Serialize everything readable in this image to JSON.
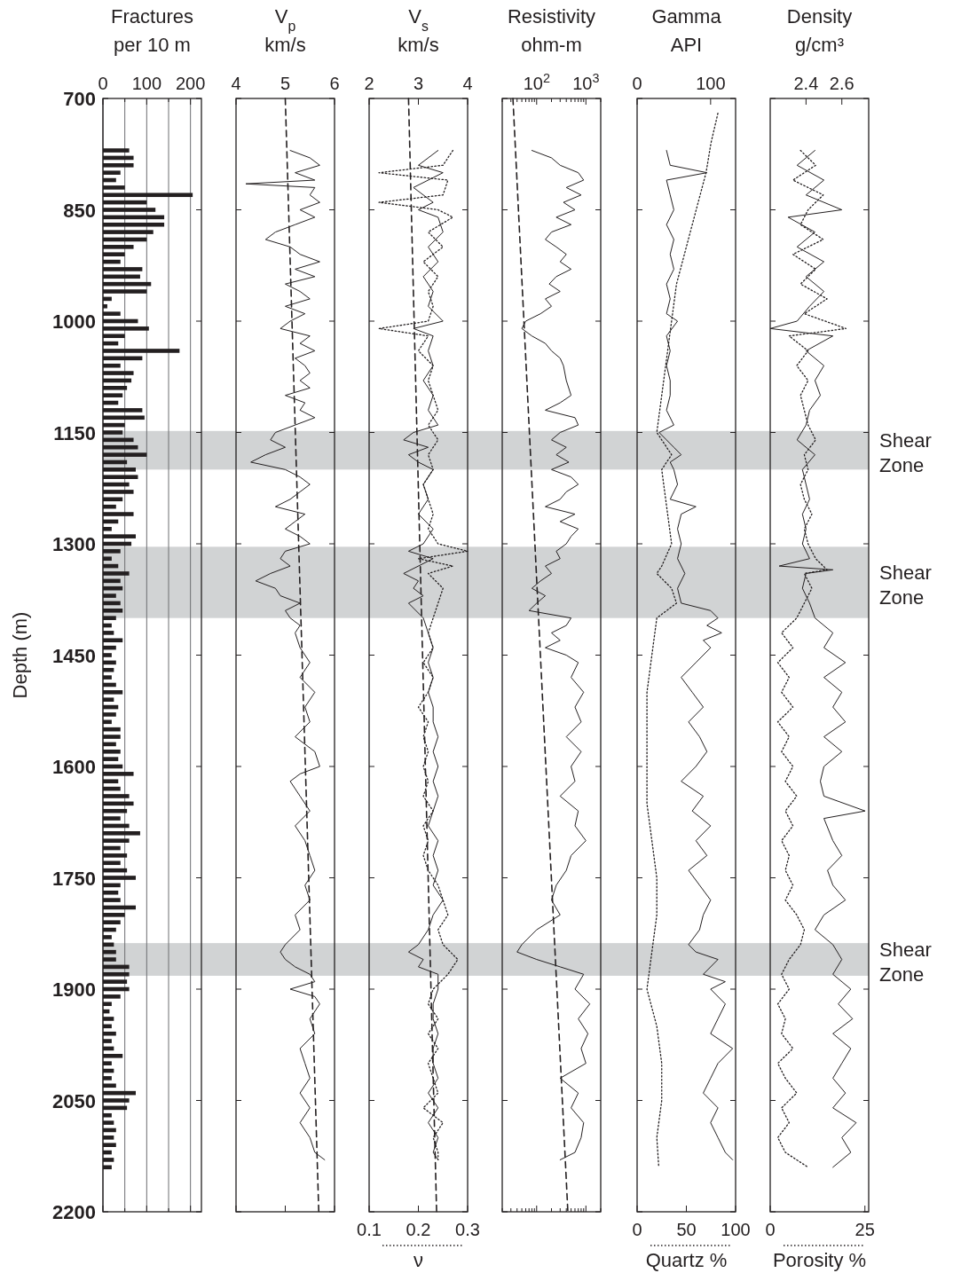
{
  "chart_data": [
    {
      "type": "bar",
      "orientation": "horizontal",
      "xlabel": "Fractures\nper 10 m",
      "ylabel": "Depth (m)",
      "xlim": [
        0,
        225
      ],
      "xticks": [
        0,
        {
          "value": 50,
          "label": null
        },
        100,
        {
          "value": 150,
          "label": null
        },
        200
      ],
      "ylim": [
        2200,
        700
      ],
      "yticks": [
        700,
        850,
        1000,
        1150,
        1300,
        1450,
        1600,
        1750,
        1900,
        2050,
        2200
      ],
      "grid": "x",
      "color": "#231f20",
      "x": [
        770,
        780,
        790,
        800,
        810,
        820,
        830,
        840,
        850,
        860,
        870,
        880,
        890,
        900,
        910,
        920,
        930,
        940,
        950,
        960,
        970,
        980,
        990,
        1000,
        1010,
        1020,
        1030,
        1040,
        1050,
        1060,
        1070,
        1080,
        1090,
        1100,
        1110,
        1120,
        1130,
        1140,
        1150,
        1160,
        1170,
        1180,
        1190,
        1200,
        1210,
        1220,
        1230,
        1240,
        1250,
        1260,
        1270,
        1280,
        1290,
        1300,
        1310,
        1320,
        1330,
        1340,
        1350,
        1360,
        1370,
        1380,
        1390,
        1400,
        1410,
        1420,
        1430,
        1440,
        1450,
        1460,
        1470,
        1480,
        1490,
        1500,
        1510,
        1520,
        1530,
        1540,
        1550,
        1560,
        1570,
        1580,
        1590,
        1600,
        1610,
        1620,
        1630,
        1640,
        1650,
        1660,
        1670,
        1680,
        1690,
        1700,
        1710,
        1720,
        1730,
        1740,
        1750,
        1760,
        1770,
        1780,
        1790,
        1800,
        1810,
        1820,
        1830,
        1840,
        1850,
        1860,
        1870,
        1880,
        1890,
        1900,
        1910,
        1920,
        1930,
        1940,
        1950,
        1960,
        1970,
        1980,
        1990,
        2000,
        2010,
        2020,
        2030,
        2040,
        2050,
        2060,
        2070,
        2080,
        2090,
        2100,
        2110,
        2120,
        2130,
        2140
      ],
      "values": [
        60,
        70,
        70,
        40,
        30,
        50,
        205,
        100,
        120,
        140,
        140,
        115,
        100,
        70,
        50,
        40,
        90,
        85,
        110,
        100,
        20,
        10,
        40,
        80,
        105,
        50,
        35,
        175,
        90,
        40,
        70,
        65,
        55,
        45,
        35,
        90,
        95,
        50,
        45,
        70,
        80,
        100,
        55,
        75,
        80,
        60,
        70,
        45,
        30,
        70,
        35,
        20,
        75,
        65,
        40,
        20,
        35,
        60,
        40,
        45,
        30,
        40,
        45,
        30,
        20,
        25,
        45,
        30,
        20,
        30,
        25,
        20,
        30,
        45,
        25,
        35,
        30,
        20,
        40,
        40,
        30,
        40,
        35,
        45,
        70,
        35,
        40,
        60,
        70,
        55,
        40,
        60,
        85,
        60,
        40,
        55,
        40,
        55,
        75,
        40,
        35,
        40,
        75,
        50,
        40,
        30,
        20,
        25,
        30,
        30,
        60,
        60,
        55,
        60,
        40,
        20,
        15,
        25,
        20,
        30,
        20,
        25,
        45,
        20,
        25,
        20,
        30,
        75,
        60,
        55,
        20,
        25,
        30,
        25,
        30,
        20,
        25,
        20
      ],
      "bands": [
        {
          "axis": "y",
          "from": 1148,
          "to": 1200,
          "color": "#d1d3d4"
        },
        {
          "axis": "y",
          "from": 1304,
          "to": 1400,
          "color": "#d1d3d4"
        },
        {
          "axis": "y",
          "from": 1838,
          "to": 1882,
          "color": "#d1d3d4"
        }
      ]
    },
    {
      "type": "line",
      "orientation": "horizontal",
      "xlabel": "V$_{p}$\nkm/s",
      "xlim": [
        4,
        6
      ],
      "xticks": [
        4,
        5,
        6
      ],
      "ylim": [
        2200,
        700
      ],
      "yticks": [
        700,
        850,
        1000,
        1150,
        1300,
        1450,
        1600,
        1750,
        1900,
        2050,
        2200
      ],
      "tick_labels": "x",
      "series": [
        {
          "color": "#231f20",
          "line_style": "solid",
          "x": [
            770,
            780,
            790,
            800,
            810,
            815,
            820,
            830,
            840,
            850,
            860,
            870,
            880,
            890,
            900,
            910,
            920,
            930,
            940,
            950,
            960,
            970,
            980,
            990,
            1000,
            1010,
            1020,
            1030,
            1040,
            1050,
            1060,
            1070,
            1080,
            1090,
            1100,
            1110,
            1120,
            1130,
            1140,
            1150,
            1160,
            1170,
            1180,
            1190,
            1200,
            1210,
            1220,
            1230,
            1240,
            1250,
            1260,
            1270,
            1280,
            1290,
            1300,
            1310,
            1320,
            1330,
            1340,
            1350,
            1360,
            1370,
            1380,
            1390,
            1400,
            1410,
            1420,
            1440,
            1460,
            1480,
            1500,
            1520,
            1540,
            1560,
            1580,
            1600,
            1610,
            1620,
            1640,
            1660,
            1680,
            1700,
            1720,
            1740,
            1760,
            1780,
            1800,
            1820,
            1840,
            1850,
            1860,
            1870,
            1880,
            1890,
            1900,
            1910,
            1920,
            1940,
            1960,
            1980,
            2000,
            2020,
            2040,
            2060,
            2080,
            2100,
            2120,
            2130
          ],
          "values": [
            5.1,
            5.5,
            5.7,
            5.2,
            5.6,
            4.2,
            5.6,
            5.5,
            5.7,
            5.3,
            5.6,
            5.2,
            4.8,
            4.6,
            5.1,
            5.3,
            5.7,
            5.2,
            5.6,
            5.0,
            5.3,
            5.5,
            5.0,
            5.4,
            5.1,
            4.9,
            5.5,
            5.3,
            5.6,
            5.2,
            5.4,
            5.5,
            5.3,
            5.5,
            5.0,
            5.4,
            5.3,
            5.6,
            5.2,
            4.8,
            4.7,
            5.0,
            4.6,
            4.3,
            5.0,
            5.3,
            5.5,
            5.3,
            5.1,
            4.8,
            5.4,
            5.2,
            5.0,
            5.3,
            5.5,
            5.0,
            4.9,
            5.1,
            4.7,
            4.4,
            4.8,
            4.9,
            5.3,
            5.0,
            5.1,
            5.3,
            5.2,
            5.3,
            5.5,
            5.3,
            5.6,
            5.4,
            5.5,
            5.2,
            5.6,
            5.7,
            5.3,
            5.1,
            5.3,
            5.5,
            5.2,
            5.4,
            5.5,
            5.6,
            5.4,
            5.5,
            5.2,
            5.3,
            5.0,
            4.9,
            5.0,
            5.2,
            5.5,
            5.6,
            5.1,
            5.6,
            5.7,
            5.5,
            5.6,
            5.3,
            5.4,
            5.5,
            5.3,
            5.5,
            5.3,
            5.5,
            5.6,
            5.8
          ]
        },
        {
          "color": "#231f20",
          "line_style": "dashed",
          "x": [
            700,
            2200
          ],
          "values": [
            5.0,
            5.68
          ]
        }
      ],
      "bands": [
        {
          "axis": "y",
          "from": 1148,
          "to": 1200,
          "color": "#d1d3d4"
        },
        {
          "axis": "y",
          "from": 1304,
          "to": 1400,
          "color": "#d1d3d4"
        },
        {
          "axis": "y",
          "from": 1838,
          "to": 1882,
          "color": "#d1d3d4"
        }
      ]
    },
    {
      "type": "line",
      "orientation": "horizontal",
      "x2label": "V$_{s}$\nkm/s",
      "xlabel": "ν",
      "x2lim": [
        2,
        4
      ],
      "x2ticks": [
        2,
        3,
        4
      ],
      "xlim": [
        0.1,
        0.3
      ],
      "xticks": [
        0.1,
        0.2,
        0.3
      ],
      "ylim": [
        2200,
        700
      ],
      "yticks": [
        700,
        850,
        1000,
        1150,
        1300,
        1450,
        1600,
        1750,
        1900,
        2050,
        2200
      ],
      "tick_labels": "x",
      "series": [
        {
          "color": "#231f20",
          "line_style": "solid",
          "axis": "x2",
          "x": [
            770,
            790,
            800,
            820,
            840,
            850,
            860,
            880,
            900,
            920,
            940,
            960,
            980,
            1000,
            1010,
            1020,
            1040,
            1060,
            1080,
            1100,
            1120,
            1140,
            1150,
            1160,
            1170,
            1180,
            1190,
            1200,
            1220,
            1240,
            1260,
            1280,
            1300,
            1310,
            1320,
            1340,
            1350,
            1360,
            1370,
            1380,
            1400,
            1420,
            1440,
            1460,
            1480,
            1500,
            1520,
            1540,
            1560,
            1580,
            1600,
            1620,
            1640,
            1660,
            1680,
            1700,
            1720,
            1740,
            1760,
            1780,
            1800,
            1820,
            1840,
            1850,
            1860,
            1870,
            1880,
            1900,
            1920,
            1940,
            1960,
            1980,
            2000,
            2020,
            2040,
            2060,
            2080,
            2100,
            2120,
            2130
          ],
          "values": [
            3.4,
            3.0,
            3.5,
            2.9,
            3.3,
            3.0,
            3.4,
            3.5,
            3.2,
            3.4,
            3.1,
            3.3,
            3.2,
            3.5,
            2.9,
            3.3,
            3.2,
            3.3,
            3.1,
            3.3,
            3.2,
            3.4,
            2.9,
            2.7,
            3.2,
            2.8,
            3.0,
            3.3,
            3.1,
            3.2,
            3.0,
            3.3,
            3.1,
            2.8,
            3.3,
            2.7,
            3.0,
            2.9,
            3.1,
            2.8,
            3.1,
            3.2,
            3.3,
            3.2,
            3.3,
            3.2,
            3.3,
            3.3,
            3.4,
            3.3,
            3.4,
            3.3,
            3.4,
            3.3,
            3.2,
            3.4,
            3.3,
            3.4,
            3.3,
            3.5,
            3.3,
            3.2,
            3.0,
            2.8,
            3.1,
            3.0,
            3.4,
            3.4,
            3.3,
            3.3,
            3.4,
            3.3,
            3.3,
            3.4,
            3.2,
            3.4,
            3.2,
            3.4,
            3.3,
            3.4
          ]
        },
        {
          "color": "#231f20",
          "line_style": "dotted",
          "x": [
            770,
            790,
            800,
            810,
            830,
            840,
            850,
            860,
            880,
            900,
            920,
            940,
            960,
            980,
            1000,
            1010,
            1020,
            1040,
            1060,
            1080,
            1100,
            1120,
            1140,
            1160,
            1180,
            1200,
            1220,
            1240,
            1260,
            1280,
            1300,
            1310,
            1320,
            1330,
            1340,
            1360,
            1380,
            1400,
            1420,
            1440,
            1460,
            1480,
            1500,
            1520,
            1540,
            1560,
            1580,
            1600,
            1620,
            1640,
            1660,
            1680,
            1700,
            1720,
            1740,
            1760,
            1780,
            1800,
            1820,
            1840,
            1860,
            1880,
            1900,
            1920,
            1940,
            1960,
            1980,
            2000,
            2020,
            2040,
            2060,
            2080,
            2100,
            2120,
            2130
          ],
          "values": [
            0.27,
            0.25,
            0.12,
            0.26,
            0.25,
            0.12,
            0.24,
            0.27,
            0.22,
            0.25,
            0.21,
            0.24,
            0.22,
            0.23,
            0.22,
            0.12,
            0.22,
            0.2,
            0.23,
            0.22,
            0.23,
            0.24,
            0.22,
            0.24,
            0.22,
            0.23,
            0.21,
            0.22,
            0.23,
            0.22,
            0.24,
            0.3,
            0.2,
            0.27,
            0.22,
            0.25,
            0.24,
            0.23,
            0.22,
            0.23,
            0.21,
            0.23,
            0.22,
            0.2,
            0.22,
            0.21,
            0.22,
            0.21,
            0.22,
            0.21,
            0.23,
            0.21,
            0.22,
            0.21,
            0.22,
            0.24,
            0.25,
            0.26,
            0.24,
            0.25,
            0.28,
            0.26,
            0.23,
            0.22,
            0.24,
            0.22,
            0.24,
            0.22,
            0.23,
            0.24,
            0.21,
            0.25,
            0.23,
            0.24,
            0.24
          ]
        },
        {
          "color": "#231f20",
          "line_style": "dashed",
          "axis": "x2",
          "x": [
            700,
            2200
          ],
          "values": [
            2.8,
            3.37
          ]
        }
      ],
      "bands": [
        {
          "axis": "y",
          "from": 1148,
          "to": 1200,
          "color": "#d1d3d4"
        },
        {
          "axis": "y",
          "from": 1304,
          "to": 1400,
          "color": "#d1d3d4"
        },
        {
          "axis": "y",
          "from": 1838,
          "to": 1882,
          "color": "#d1d3d4"
        }
      ]
    },
    {
      "type": "line",
      "orientation": "horizontal",
      "log": "x",
      "xlabel": "Resistivity\nohm-m",
      "xlim": [
        20,
        2000
      ],
      "xticks": [
        {
          "value": 20,
          "label": null
        },
        {
          "value": 30,
          "label": null
        },
        {
          "value": 40,
          "label": null
        },
        {
          "value": 50,
          "label": null
        },
        {
          "value": 60,
          "label": null
        },
        {
          "value": 70,
          "label": null
        },
        {
          "value": 80,
          "label": null
        },
        {
          "value": 90,
          "label": null
        },
        {
          "value": 100,
          "label": "10$^{2}$"
        },
        {
          "value": 200,
          "label": null
        },
        {
          "value": 300,
          "label": null
        },
        {
          "value": 400,
          "label": null
        },
        {
          "value": 500,
          "label": null
        },
        {
          "value": 600,
          "label": null
        },
        {
          "value": 700,
          "label": null
        },
        {
          "value": 800,
          "label": null
        },
        {
          "value": 900,
          "label": null
        },
        {
          "value": 1000,
          "label": "10$^{3}$"
        },
        {
          "value": 2000,
          "label": null
        }
      ],
      "ylim": [
        2200,
        700
      ],
      "yticks": [
        700,
        850,
        1000,
        1150,
        1300,
        1450,
        1600,
        1750,
        1900,
        2050,
        2200
      ],
      "tick_labels": "x",
      "series": [
        {
          "color": "#231f20",
          "line_style": "solid",
          "x": [
            770,
            780,
            790,
            800,
            810,
            820,
            830,
            840,
            850,
            860,
            870,
            880,
            890,
            900,
            910,
            920,
            930,
            940,
            950,
            960,
            970,
            980,
            990,
            1000,
            1010,
            1020,
            1030,
            1040,
            1050,
            1060,
            1080,
            1100,
            1110,
            1120,
            1130,
            1140,
            1150,
            1160,
            1170,
            1180,
            1190,
            1200,
            1210,
            1220,
            1230,
            1240,
            1250,
            1260,
            1270,
            1280,
            1290,
            1300,
            1310,
            1320,
            1330,
            1340,
            1350,
            1360,
            1370,
            1380,
            1390,
            1400,
            1410,
            1420,
            1430,
            1440,
            1450,
            1460,
            1480,
            1500,
            1520,
            1540,
            1560,
            1580,
            1600,
            1620,
            1640,
            1660,
            1680,
            1700,
            1720,
            1740,
            1760,
            1780,
            1800,
            1820,
            1840,
            1850,
            1860,
            1870,
            1880,
            1900,
            1920,
            1940,
            1960,
            1980,
            2000,
            2020,
            2040,
            2060,
            2080,
            2100,
            2120,
            2130
          ],
          "values": [
            80,
            200,
            300,
            700,
            900,
            400,
            800,
            350,
            600,
            250,
            500,
            200,
            150,
            250,
            400,
            300,
            500,
            250,
            180,
            300,
            150,
            200,
            120,
            60,
            50,
            80,
            150,
            200,
            300,
            350,
            400,
            500,
            300,
            150,
            600,
            700,
            300,
            200,
            400,
            250,
            450,
            200,
            500,
            700,
            400,
            300,
            150,
            600,
            300,
            700,
            500,
            400,
            250,
            300,
            150,
            200,
            120,
            80,
            150,
            100,
            70,
            500,
            400,
            200,
            300,
            150,
            400,
            700,
            500,
            900,
            600,
            800,
            400,
            800,
            500,
            600,
            300,
            700,
            600,
            1000,
            500,
            400,
            250,
            200,
            300,
            100,
            50,
            40,
            100,
            300,
            900,
            600,
            1200,
            700,
            1100,
            800,
            1000,
            300,
            700,
            500,
            900,
            800,
            600,
            300
          ]
        },
        {
          "color": "#231f20",
          "line_style": "dashed",
          "x": [
            700,
            2200
          ],
          "values": [
            33,
            430
          ]
        }
      ],
      "bands": [
        {
          "axis": "y",
          "from": 1148,
          "to": 1200,
          "color": "#d1d3d4"
        },
        {
          "axis": "y",
          "from": 1304,
          "to": 1400,
          "color": "#d1d3d4"
        },
        {
          "axis": "y",
          "from": 1838,
          "to": 1882,
          "color": "#d1d3d4"
        }
      ]
    },
    {
      "type": "line",
      "orientation": "horizontal",
      "x2label": "Gamma\nAPI",
      "xlabel": "Quartz %",
      "x2lim": [
        0,
        134
      ],
      "x2ticks": [
        0,
        100
      ],
      "xlim": [
        0,
        100
      ],
      "xticks": [
        0,
        50,
        100
      ],
      "ylim": [
        2200,
        700
      ],
      "yticks": [
        700,
        850,
        1000,
        1150,
        1300,
        1450,
        1600,
        1750,
        1900,
        2050,
        2200
      ],
      "tick_labels": "x",
      "series": [
        {
          "color": "#231f20",
          "line_style": "solid",
          "axis": "x2",
          "x": [
            770,
            790,
            800,
            810,
            830,
            850,
            870,
            890,
            910,
            930,
            950,
            970,
            990,
            1000,
            1020,
            1040,
            1060,
            1080,
            1100,
            1120,
            1140,
            1150,
            1160,
            1170,
            1180,
            1190,
            1200,
            1220,
            1240,
            1250,
            1260,
            1280,
            1300,
            1320,
            1340,
            1360,
            1380,
            1390,
            1400,
            1410,
            1420,
            1430,
            1440,
            1460,
            1480,
            1500,
            1520,
            1540,
            1560,
            1580,
            1600,
            1620,
            1640,
            1660,
            1680,
            1700,
            1720,
            1740,
            1760,
            1780,
            1800,
            1820,
            1840,
            1850,
            1860,
            1880,
            1890,
            1900,
            1920,
            1940,
            1960,
            1980,
            2000,
            2020,
            2040,
            2060,
            2080,
            2100,
            2120,
            2130
          ],
          "values": [
            40,
            45,
            95,
            40,
            45,
            50,
            40,
            50,
            45,
            50,
            40,
            45,
            40,
            55,
            40,
            45,
            40,
            45,
            45,
            40,
            50,
            30,
            40,
            50,
            60,
            45,
            50,
            55,
            45,
            80,
            60,
            55,
            60,
            55,
            65,
            55,
            60,
            100,
            110,
            95,
            115,
            90,
            100,
            80,
            60,
            75,
            90,
            70,
            85,
            95,
            80,
            60,
            90,
            75,
            100,
            80,
            95,
            70,
            85,
            100,
            90,
            85,
            70,
            80,
            110,
            90,
            120,
            100,
            120,
            110,
            100,
            130,
            110,
            100,
            90,
            110,
            100,
            110,
            120,
            130
          ]
        },
        {
          "color": "#231f20",
          "line_style": "dotted",
          "x": [
            720,
            760,
            800,
            850,
            900,
            950,
            1000,
            1050,
            1100,
            1150,
            1180,
            1200,
            1250,
            1300,
            1330,
            1340,
            1360,
            1380,
            1400,
            1450,
            1500,
            1550,
            1600,
            1650,
            1700,
            1750,
            1800,
            1850,
            1900,
            1950,
            2000,
            2050,
            2100,
            2140
          ],
          "values": [
            82,
            75,
            70,
            60,
            50,
            40,
            35,
            30,
            25,
            20,
            35,
            25,
            30,
            35,
            25,
            20,
            35,
            40,
            20,
            15,
            10,
            10,
            10,
            10,
            15,
            20,
            20,
            15,
            10,
            20,
            25,
            25,
            20,
            22
          ]
        }
      ],
      "bands": [
        {
          "axis": "y",
          "from": 1148,
          "to": 1200,
          "color": "#d1d3d4"
        },
        {
          "axis": "y",
          "from": 1304,
          "to": 1400,
          "color": "#d1d3d4"
        },
        {
          "axis": "y",
          "from": 1838,
          "to": 1882,
          "color": "#d1d3d4"
        }
      ]
    },
    {
      "type": "line",
      "orientation": "horizontal",
      "x2label": "Density\ng/cm³",
      "xlabel": "Porosity %",
      "x2lim": [
        2.2,
        2.75
      ],
      "x2ticks": [
        2.4,
        2.6
      ],
      "xlim": [
        0,
        26
      ],
      "xticks": [
        0,
        25
      ],
      "ylim": [
        2200,
        700
      ],
      "yticks": [
        700,
        850,
        1000,
        1150,
        1300,
        1450,
        1600,
        1750,
        1900,
        2050,
        2200
      ],
      "tick_labels": "x",
      "series": [
        {
          "color": "#231f20",
          "line_style": "solid",
          "axis": "x2",
          "x": [
            770,
            790,
            810,
            830,
            850,
            860,
            880,
            900,
            920,
            940,
            960,
            980,
            1000,
            1010,
            1020,
            1040,
            1060,
            1080,
            1100,
            1120,
            1140,
            1160,
            1180,
            1200,
            1220,
            1240,
            1260,
            1280,
            1300,
            1320,
            1330,
            1335,
            1340,
            1360,
            1380,
            1400,
            1420,
            1440,
            1460,
            1480,
            1500,
            1520,
            1540,
            1560,
            1580,
            1600,
            1620,
            1640,
            1660,
            1670,
            1700,
            1720,
            1740,
            1760,
            1780,
            1800,
            1820,
            1840,
            1860,
            1880,
            1900,
            1920,
            1940,
            1960,
            1980,
            2000,
            2020,
            2040,
            2060,
            2080,
            2100,
            2120,
            2140
          ],
          "values": [
            2.45,
            2.35,
            2.5,
            2.4,
            2.6,
            2.3,
            2.45,
            2.35,
            2.5,
            2.4,
            2.5,
            2.42,
            2.35,
            2.2,
            2.55,
            2.4,
            2.5,
            2.45,
            2.48,
            2.42,
            2.4,
            2.35,
            2.45,
            2.38,
            2.4,
            2.42,
            2.38,
            2.4,
            2.38,
            2.42,
            2.25,
            2.55,
            2.4,
            2.38,
            2.42,
            2.45,
            2.55,
            2.5,
            2.62,
            2.5,
            2.6,
            2.55,
            2.62,
            2.5,
            2.6,
            2.5,
            2.48,
            2.5,
            2.73,
            2.5,
            2.55,
            2.6,
            2.52,
            2.55,
            2.62,
            2.5,
            2.45,
            2.55,
            2.6,
            2.55,
            2.65,
            2.58,
            2.66,
            2.55,
            2.65,
            2.6,
            2.55,
            2.62,
            2.55,
            2.68,
            2.6,
            2.65,
            2.55
          ]
        },
        {
          "color": "#231f20",
          "line_style": "dotted",
          "x": [
            770,
            790,
            810,
            830,
            850,
            870,
            890,
            910,
            930,
            950,
            970,
            990,
            1010,
            1020,
            1040,
            1060,
            1080,
            1100,
            1120,
            1140,
            1160,
            1180,
            1200,
            1220,
            1240,
            1260,
            1280,
            1300,
            1320,
            1335,
            1340,
            1360,
            1380,
            1400,
            1420,
            1440,
            1460,
            1480,
            1500,
            1520,
            1540,
            1560,
            1580,
            1600,
            1620,
            1640,
            1660,
            1680,
            1700,
            1720,
            1740,
            1760,
            1780,
            1800,
            1820,
            1840,
            1860,
            1880,
            1900,
            1920,
            1940,
            1960,
            1980,
            2000,
            2020,
            2040,
            2060,
            2080,
            2100,
            2120,
            2140
          ],
          "values": [
            8,
            12,
            6,
            14,
            10,
            8,
            14,
            6,
            12,
            8,
            15,
            9,
            20,
            5,
            10,
            7,
            10,
            8,
            9,
            10,
            12,
            9,
            10,
            8,
            9,
            11,
            9,
            10,
            12,
            15,
            9,
            11,
            9,
            7,
            3,
            6,
            2,
            5,
            3,
            6,
            2,
            5,
            3,
            6,
            4,
            7,
            4,
            6,
            3,
            5,
            4,
            6,
            4,
            7,
            9,
            8,
            5,
            3,
            5,
            2,
            4,
            3,
            6,
            2,
            4,
            7,
            3,
            5,
            2,
            4,
            10
          ]
        }
      ],
      "bands": [
        {
          "axis": "y",
          "from": 1148,
          "to": 1200,
          "color": "#d1d3d4",
          "label": "Shear Zone"
        },
        {
          "axis": "y",
          "from": 1304,
          "to": 1400,
          "color": "#d1d3d4",
          "label": "Shear Zone"
        },
        {
          "axis": "y",
          "from": 1838,
          "to": 1882,
          "color": "#d1d3d4",
          "label": "Shear Zone"
        }
      ]
    }
  ]
}
